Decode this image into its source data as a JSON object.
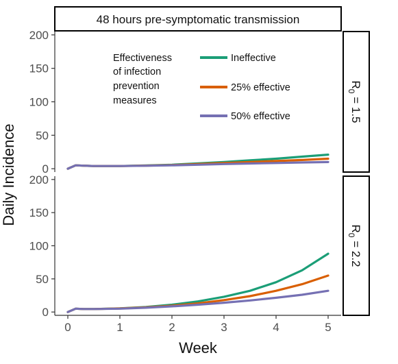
{
  "chart_data": {
    "type": "line",
    "title": "48 hours pre-symptomatic transmission",
    "xlabel": "Week",
    "ylabel": "Daily Incidence",
    "xlim": [
      -0.25,
      5.25
    ],
    "ylim": [
      -5,
      205
    ],
    "xticks": [
      0,
      1,
      2,
      3,
      4,
      5
    ],
    "yticks": [
      0,
      50,
      100,
      150,
      200
    ],
    "grid": false,
    "legend": {
      "title": [
        "Effectiveness",
        "of infection",
        "prevention",
        "measures"
      ],
      "placement": "top-left inside top panel",
      "entries": [
        "Ineffective",
        "25% effective",
        "50% effective"
      ]
    },
    "colors": {
      "Ineffective": "#1b9e77",
      "25% effective": "#d95f02",
      "50% effective": "#7570b3"
    },
    "x": [
      0,
      0.15,
      0.3,
      0.5,
      1,
      1.5,
      2,
      2.5,
      3,
      3.5,
      4,
      4.5,
      5
    ],
    "panels": [
      {
        "strip": {
          "base": "R",
          "sub": "0",
          "rest": " = 1.5"
        },
        "series": [
          {
            "name": "Ineffective",
            "values": [
              0,
              5,
              4.5,
              4,
              4,
              4.8,
              6,
              8,
              10,
              12.5,
              15,
              18,
              21
            ]
          },
          {
            "name": "25% effective",
            "values": [
              0,
              5,
              4.5,
              4,
              4,
              4.6,
              5.5,
              7,
              8.5,
              10,
              11.5,
              13,
              15
            ]
          },
          {
            "name": "50% effective",
            "values": [
              0,
              5,
              4.5,
              4,
              4,
              4.4,
              5,
              6,
              7,
              7.8,
              8.5,
              9.3,
              10
            ]
          }
        ]
      },
      {
        "strip": {
          "base": "R",
          "sub": "0",
          "rest": " = 2.2"
        },
        "series": [
          {
            "name": "Ineffective",
            "values": [
              0,
              5,
              4.5,
              4.5,
              5.5,
              7.5,
              11,
              16,
              23,
              32,
              45,
              63,
              88
            ]
          },
          {
            "name": "25% effective",
            "values": [
              0,
              5,
              4.5,
              4.5,
              5.3,
              7,
              9.5,
              13,
              18,
              24,
              32,
              42,
              55
            ]
          },
          {
            "name": "50% effective",
            "values": [
              0,
              5,
              4.5,
              4.5,
              5,
              6.5,
              8.5,
              11,
              14,
              17.5,
              21.5,
              26,
              32
            ]
          }
        ]
      }
    ]
  }
}
